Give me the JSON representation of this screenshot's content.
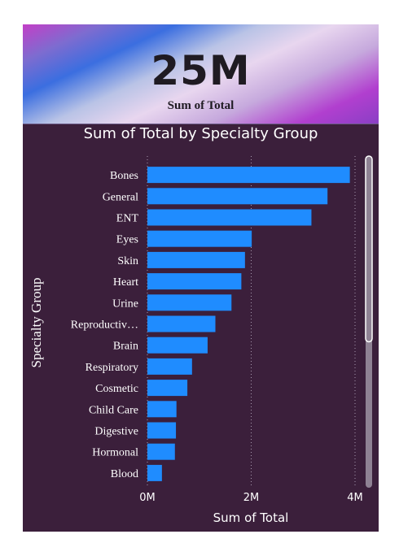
{
  "kpi": {
    "value": "25M",
    "label": "Sum of Total"
  },
  "colors": {
    "bar": "#1f8cff",
    "card_bg": "#3b1f3b",
    "grid": "#a89bb0",
    "scrollbar_track": "#8f8294",
    "scrollbar_thumb": "#ffffff"
  },
  "chart_data": {
    "type": "bar",
    "orientation": "horizontal",
    "title": "Sum of Total by Specialty Group",
    "xlabel": "Sum of Total",
    "ylabel": "Specialty Group",
    "categories": [
      "Bones",
      "General",
      "ENT",
      "Eyes",
      "Skin",
      "Heart",
      "Urine",
      "Reproductiv…",
      "Brain",
      "Respiratory",
      "Cosmetic",
      "Child Care",
      "Digestive",
      "Hormonal",
      "Blood"
    ],
    "values": [
      3900000,
      3470000,
      3160000,
      2010000,
      1880000,
      1810000,
      1620000,
      1310000,
      1160000,
      860000,
      770000,
      560000,
      550000,
      530000,
      280000
    ],
    "xlim": [
      0,
      4000000
    ],
    "xticks": [
      0,
      2000000,
      4000000
    ],
    "xtick_labels": [
      "0M",
      "2M",
      "4M"
    ],
    "grid": "vertical-dotted",
    "scrollbar": {
      "visible": true,
      "position_fraction": 0.0
    }
  }
}
